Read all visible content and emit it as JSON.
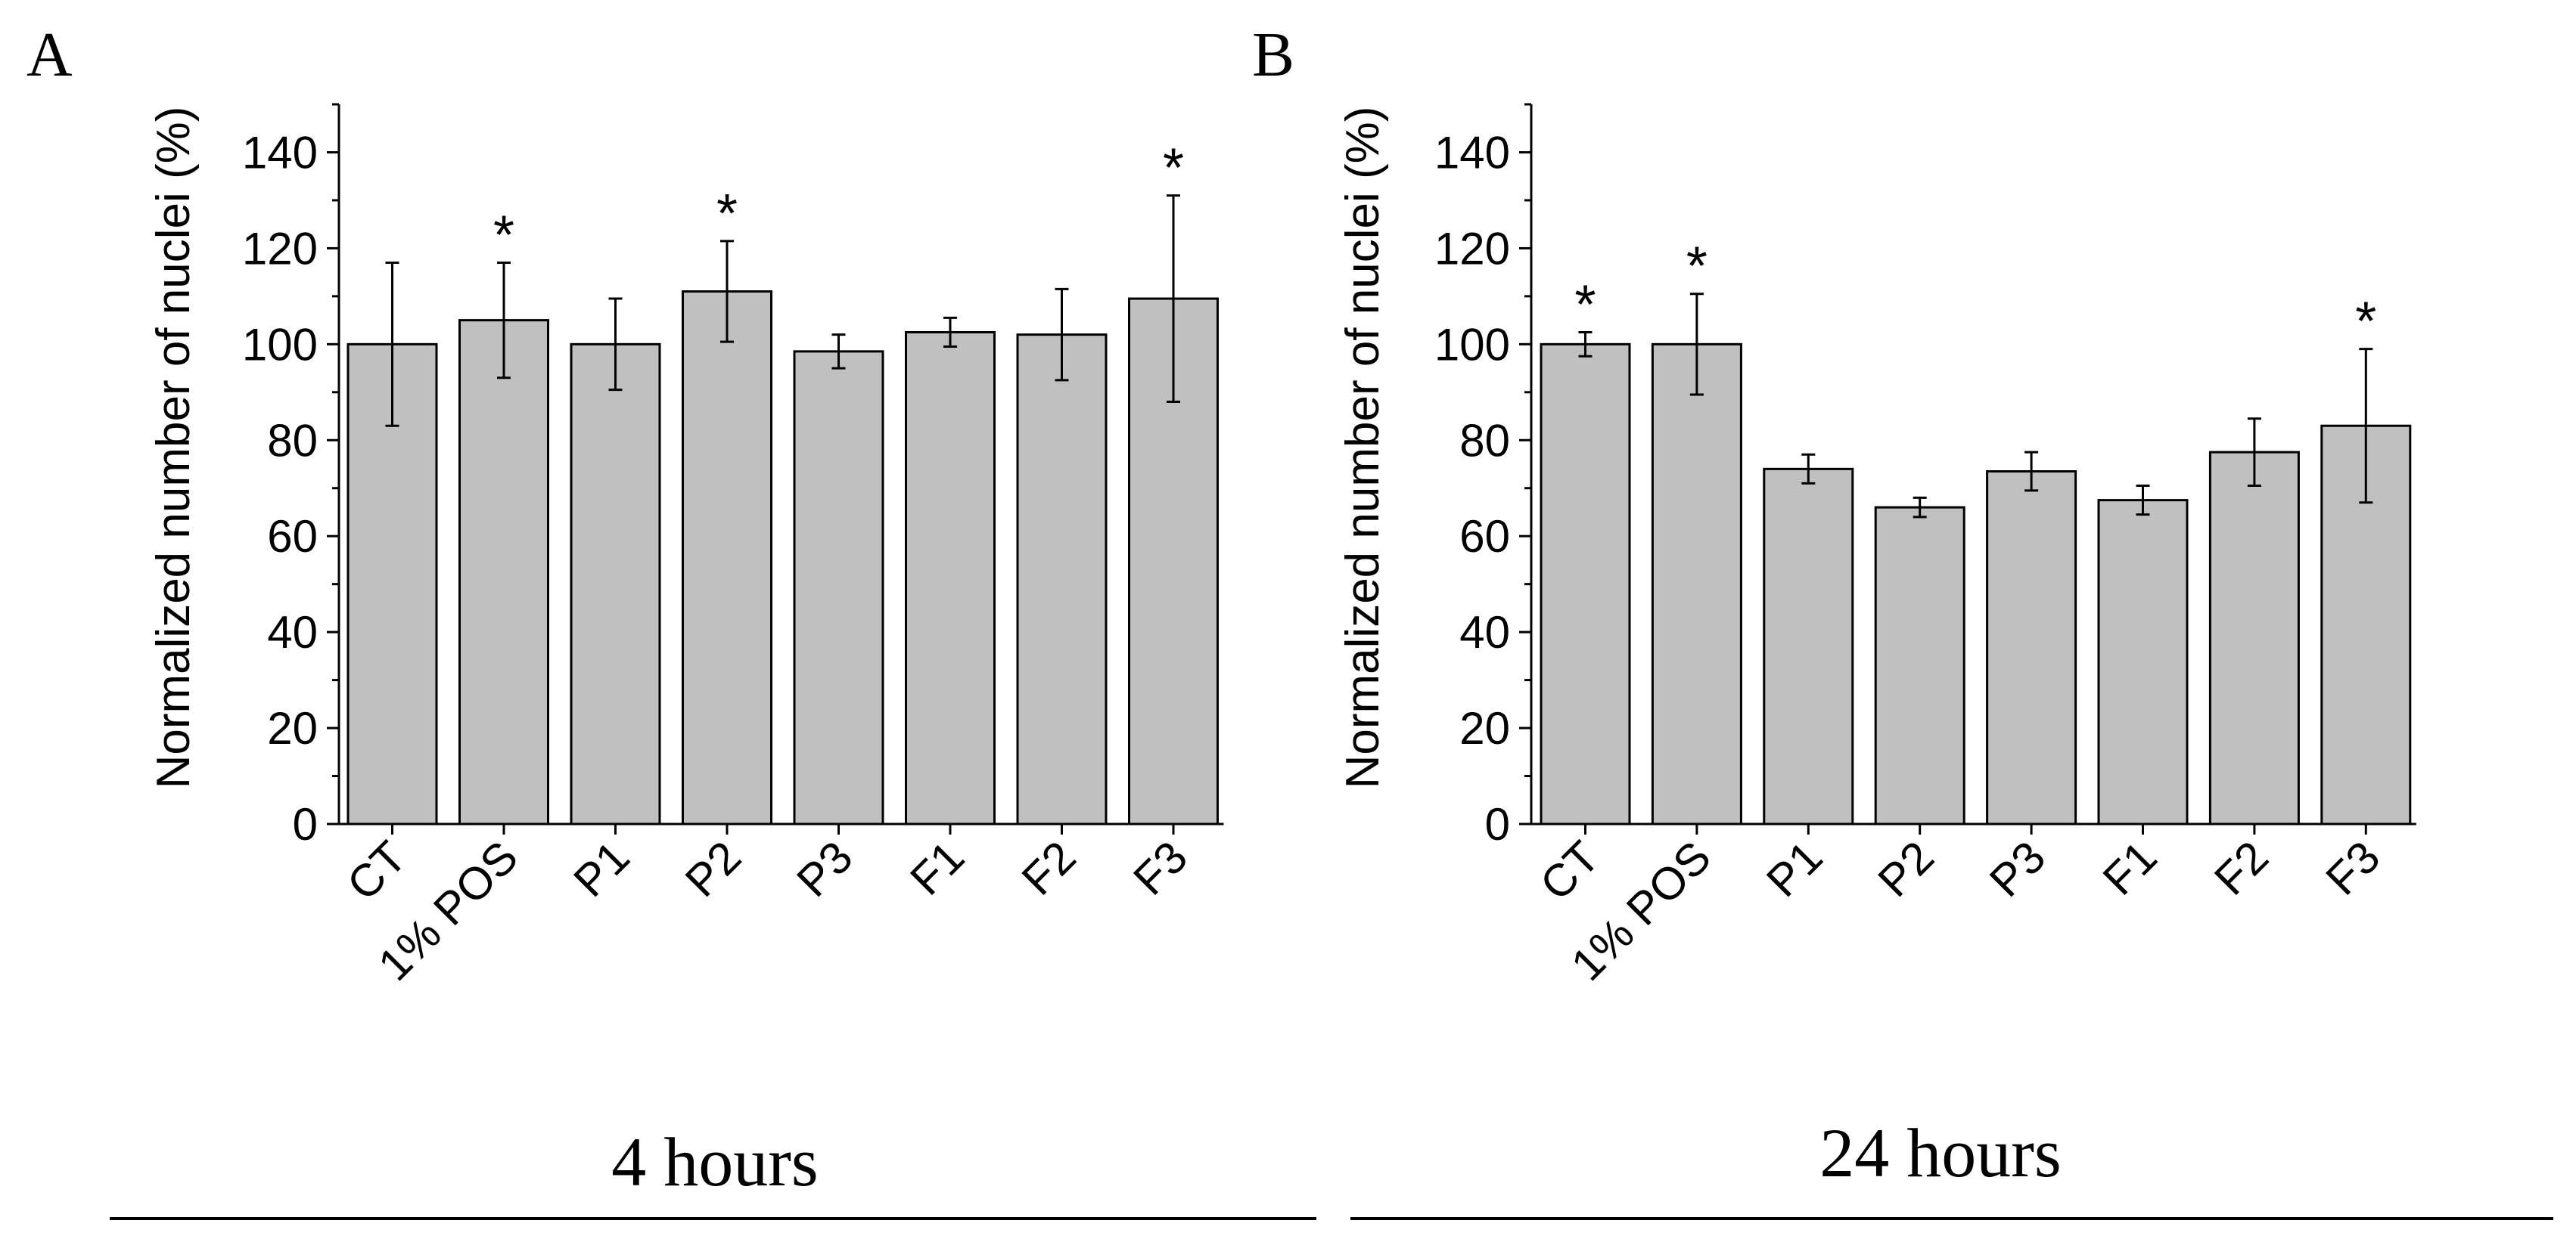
{
  "figure": {
    "captions": [
      "4 hours",
      "24 hours"
    ]
  },
  "chart_data": [
    {
      "panel_label": "A",
      "type": "bar",
      "title": "",
      "caption": "4 hours",
      "xlabel": "",
      "ylabel": "Normalized number of nuclei (%)",
      "ylim": [
        0,
        150
      ],
      "yticks": [
        0,
        20,
        40,
        60,
        80,
        100,
        120,
        140
      ],
      "categories": [
        "CT",
        "1% POS",
        "P1",
        "P2",
        "P3",
        "F1",
        "F2",
        "F3"
      ],
      "values": [
        100,
        105,
        100,
        111,
        98.5,
        102.5,
        102,
        109.5
      ],
      "errors": [
        17,
        12,
        9.5,
        10.5,
        3.5,
        3,
        9.5,
        21.5
      ],
      "significance": [
        "",
        "*",
        "",
        "*",
        "",
        "",
        "",
        "*"
      ],
      "bar_color": "#c0c0c0"
    },
    {
      "panel_label": "B",
      "type": "bar",
      "title": "",
      "caption": "24 hours",
      "xlabel": "",
      "ylabel": "Normalized number of nuclei (%)",
      "ylim": [
        0,
        150
      ],
      "yticks": [
        0,
        20,
        40,
        60,
        80,
        100,
        120,
        140
      ],
      "categories": [
        "CT",
        "1% POS",
        "P1",
        "P2",
        "P3",
        "F1",
        "F2",
        "F3"
      ],
      "values": [
        100,
        100,
        74,
        66,
        73.5,
        67.5,
        77.5,
        83
      ],
      "errors": [
        2.5,
        10.5,
        3,
        2,
        4,
        3,
        7,
        16
      ],
      "significance": [
        "*",
        "*",
        "",
        "",
        "",
        "",
        "",
        "*"
      ],
      "bar_color": "#c0c0c0"
    }
  ]
}
